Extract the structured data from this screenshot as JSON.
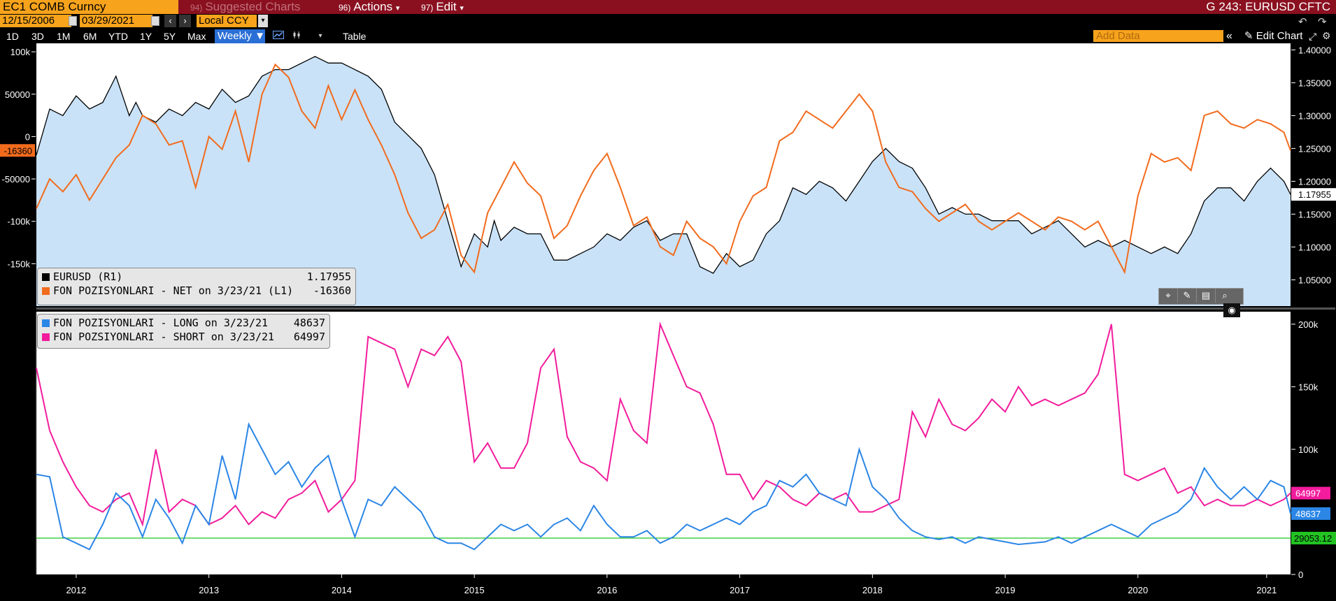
{
  "header": {
    "security": "EC1 COMB Curncy",
    "menu": [
      {
        "num": "94)",
        "label": "Suggested Charts",
        "dim": true
      },
      {
        "num": "96)",
        "label": "Actions",
        "caret": "▾"
      },
      {
        "num": "97)",
        "label": "Edit",
        "caret": "▾"
      }
    ],
    "ticker": "G 243: EURUSD CFTC"
  },
  "toolbar": {
    "start_date": "12/15/2006",
    "end_date": "03/29/2021",
    "currency": "Local CCY",
    "ranges": [
      "1D",
      "3D",
      "1M",
      "6M",
      "YTD",
      "1Y",
      "5Y",
      "Max"
    ],
    "frequency": "Weekly ▼",
    "table_label": "Table",
    "add_data_placeholder": "Add Data",
    "edit_chart_label": "Edit Chart"
  },
  "colors": {
    "eurusd": "#000000",
    "eurusd_fill": "#c9e2f8",
    "net": "#f26b1d",
    "long": "#2b86e6",
    "short": "#f21c9c",
    "hline": "#22c322",
    "plot_bg": "#ffffff"
  },
  "chart_data": [
    {
      "type": "line",
      "title": "",
      "xlabel": "",
      "x_ticks": [
        "2012",
        "2013",
        "2014",
        "2015",
        "2016",
        "2017",
        "2018",
        "2019",
        "2020",
        "2021"
      ],
      "y_left_ticks": [
        "100k",
        "50000",
        "0",
        "-50000",
        "-100k",
        "-150k"
      ],
      "y_left_range": [
        -200000,
        110000
      ],
      "y_right_ticks": [
        "1.40000",
        "1.35000",
        "1.30000",
        "1.25000",
        "1.20000",
        "1.15000",
        "1.10000",
        "1.05000"
      ],
      "y_right_range": [
        1.01,
        1.41
      ],
      "x_range": [
        2011.6,
        2021.05
      ],
      "series": [
        {
          "name": "EURUSD (R1)",
          "axis": "right",
          "last_value": "1.17955",
          "x": [
            2011.6,
            2011.7,
            2011.8,
            2011.9,
            2012.0,
            2012.1,
            2012.2,
            2012.3,
            2012.35,
            2012.4,
            2012.5,
            2012.6,
            2012.7,
            2012.8,
            2012.9,
            2013.0,
            2013.1,
            2013.2,
            2013.3,
            2013.4,
            2013.5,
            2013.6,
            2013.7,
            2013.8,
            2013.9,
            2014.0,
            2014.1,
            2014.2,
            2014.3,
            2014.4,
            2014.5,
            2014.6,
            2014.7,
            2014.8,
            2014.9,
            2015.0,
            2015.05,
            2015.1,
            2015.2,
            2015.3,
            2015.4,
            2015.5,
            2015.6,
            2015.7,
            2015.8,
            2015.9,
            2016.0,
            2016.1,
            2016.2,
            2016.3,
            2016.4,
            2016.5,
            2016.6,
            2016.7,
            2016.8,
            2016.9,
            2017.0,
            2017.1,
            2017.2,
            2017.3,
            2017.4,
            2017.5,
            2017.6,
            2017.7,
            2017.8,
            2017.9,
            2018.0,
            2018.1,
            2018.2,
            2018.3,
            2018.4,
            2018.5,
            2018.6,
            2018.7,
            2018.8,
            2018.9,
            2019.0,
            2019.1,
            2019.2,
            2019.3,
            2019.4,
            2019.5,
            2019.6,
            2019.7,
            2019.8,
            2019.9,
            2020.0,
            2020.1,
            2020.2,
            2020.3,
            2020.4,
            2020.5,
            2020.6,
            2020.7,
            2020.8,
            2020.9,
            2021.0,
            2021.05
          ],
          "y": [
            1.24,
            1.31,
            1.3,
            1.33,
            1.31,
            1.32,
            1.36,
            1.3,
            1.32,
            1.3,
            1.29,
            1.31,
            1.3,
            1.32,
            1.31,
            1.34,
            1.32,
            1.33,
            1.36,
            1.37,
            1.37,
            1.38,
            1.39,
            1.38,
            1.38,
            1.37,
            1.36,
            1.34,
            1.29,
            1.27,
            1.25,
            1.21,
            1.14,
            1.07,
            1.12,
            1.1,
            1.14,
            1.11,
            1.13,
            1.12,
            1.12,
            1.08,
            1.08,
            1.09,
            1.1,
            1.12,
            1.11,
            1.13,
            1.14,
            1.11,
            1.12,
            1.12,
            1.07,
            1.06,
            1.09,
            1.07,
            1.08,
            1.12,
            1.14,
            1.19,
            1.18,
            1.2,
            1.19,
            1.17,
            1.2,
            1.23,
            1.25,
            1.23,
            1.22,
            1.19,
            1.15,
            1.16,
            1.15,
            1.15,
            1.14,
            1.14,
            1.14,
            1.12,
            1.13,
            1.14,
            1.12,
            1.1,
            1.11,
            1.1,
            1.11,
            1.1,
            1.09,
            1.1,
            1.09,
            1.12,
            1.17,
            1.19,
            1.19,
            1.17,
            1.2,
            1.22,
            1.2,
            1.18
          ]
        },
        {
          "name": "FON POZISYONLARI - NET on 3/23/21 (L1)",
          "axis": "left",
          "last_value": "-16360",
          "x": [
            2011.6,
            2011.7,
            2011.8,
            2011.9,
            2012.0,
            2012.1,
            2012.2,
            2012.3,
            2012.4,
            2012.5,
            2012.6,
            2012.7,
            2012.8,
            2012.9,
            2013.0,
            2013.1,
            2013.2,
            2013.3,
            2013.4,
            2013.5,
            2013.6,
            2013.7,
            2013.8,
            2013.9,
            2014.0,
            2014.1,
            2014.2,
            2014.3,
            2014.4,
            2014.5,
            2014.6,
            2014.7,
            2014.8,
            2014.9,
            2015.0,
            2015.1,
            2015.2,
            2015.3,
            2015.4,
            2015.5,
            2015.6,
            2015.7,
            2015.8,
            2015.9,
            2016.0,
            2016.1,
            2016.2,
            2016.3,
            2016.4,
            2016.5,
            2016.6,
            2016.7,
            2016.8,
            2016.9,
            2017.0,
            2017.1,
            2017.2,
            2017.3,
            2017.4,
            2017.5,
            2017.6,
            2017.7,
            2017.8,
            2017.9,
            2018.0,
            2018.1,
            2018.2,
            2018.3,
            2018.4,
            2018.5,
            2018.6,
            2018.7,
            2018.8,
            2018.9,
            2019.0,
            2019.1,
            2019.2,
            2019.3,
            2019.4,
            2019.5,
            2019.6,
            2019.7,
            2019.8,
            2019.9,
            2020.0,
            2020.1,
            2020.2,
            2020.3,
            2020.4,
            2020.5,
            2020.6,
            2020.7,
            2020.8,
            2020.9,
            2021.0,
            2021.05
          ],
          "y": [
            -85000,
            -50000,
            -65000,
            -45000,
            -75000,
            -50000,
            -25000,
            -10000,
            25000,
            15000,
            -10000,
            -5000,
            -60000,
            0,
            -15000,
            30000,
            -30000,
            50000,
            85000,
            70000,
            30000,
            10000,
            60000,
            20000,
            55000,
            20000,
            -10000,
            -45000,
            -90000,
            -120000,
            -110000,
            -80000,
            -140000,
            -160000,
            -90000,
            -60000,
            -30000,
            -55000,
            -70000,
            -120000,
            -105000,
            -70000,
            -40000,
            -20000,
            -60000,
            -105000,
            -95000,
            -130000,
            -140000,
            -100000,
            -120000,
            -130000,
            -150000,
            -100000,
            -70000,
            -60000,
            -5000,
            5000,
            30000,
            20000,
            10000,
            30000,
            50000,
            30000,
            -30000,
            -60000,
            -65000,
            -85000,
            -100000,
            -90000,
            -80000,
            -100000,
            -110000,
            -100000,
            -90000,
            -100000,
            -110000,
            -95000,
            -100000,
            -110000,
            -100000,
            -130000,
            -160000,
            -70000,
            -20000,
            -30000,
            -25000,
            -40000,
            25000,
            30000,
            15000,
            10000,
            20000,
            15000,
            5000,
            -16360
          ]
        }
      ],
      "legend": "bottom-left"
    },
    {
      "type": "line",
      "title": "",
      "xlabel": "",
      "x_ticks": [
        "2012",
        "2013",
        "2014",
        "2015",
        "2016",
        "2017",
        "2018",
        "2019",
        "2020",
        "2021"
      ],
      "y_right_ticks": [
        "200k",
        "150k",
        "100k",
        "50000",
        "0"
      ],
      "y_range": [
        0,
        210000
      ],
      "x_range": [
        2011.6,
        2021.05
      ],
      "hline": {
        "value": "29053.12",
        "y": 29053.12
      },
      "series": [
        {
          "name": "FON POZISYONLARI - LONG on 3/23/21",
          "last_value": "48637",
          "x": [
            2011.6,
            2011.7,
            2011.8,
            2011.9,
            2012.0,
            2012.1,
            2012.2,
            2012.3,
            2012.4,
            2012.5,
            2012.6,
            2012.7,
            2012.8,
            2012.9,
            2013.0,
            2013.1,
            2013.2,
            2013.3,
            2013.4,
            2013.5,
            2013.6,
            2013.7,
            2013.8,
            2013.9,
            2014.0,
            2014.1,
            2014.2,
            2014.3,
            2014.4,
            2014.5,
            2014.6,
            2014.7,
            2014.8,
            2014.9,
            2015.0,
            2015.1,
            2015.2,
            2015.3,
            2015.4,
            2015.5,
            2015.6,
            2015.7,
            2015.8,
            2015.9,
            2016.0,
            2016.1,
            2016.2,
            2016.3,
            2016.4,
            2016.5,
            2016.6,
            2016.7,
            2016.8,
            2016.9,
            2017.0,
            2017.1,
            2017.2,
            2017.3,
            2017.4,
            2017.5,
            2017.6,
            2017.7,
            2017.8,
            2017.9,
            2018.0,
            2018.1,
            2018.2,
            2018.3,
            2018.4,
            2018.5,
            2018.6,
            2018.7,
            2018.8,
            2018.9,
            2019.0,
            2019.1,
            2019.2,
            2019.3,
            2019.4,
            2019.5,
            2019.6,
            2019.7,
            2019.8,
            2019.9,
            2020.0,
            2020.1,
            2020.2,
            2020.3,
            2020.4,
            2020.5,
            2020.6,
            2020.7,
            2020.8,
            2020.9,
            2021.0,
            2021.05
          ],
          "y": [
            80000,
            78000,
            30000,
            25000,
            20000,
            40000,
            65000,
            55000,
            30000,
            60000,
            45000,
            25000,
            55000,
            40000,
            95000,
            60000,
            120000,
            100000,
            80000,
            90000,
            70000,
            85000,
            95000,
            60000,
            30000,
            60000,
            55000,
            70000,
            60000,
            50000,
            30000,
            25000,
            25000,
            20000,
            30000,
            40000,
            35000,
            40000,
            30000,
            40000,
            45000,
            35000,
            55000,
            40000,
            30000,
            30000,
            35000,
            25000,
            30000,
            40000,
            35000,
            40000,
            45000,
            40000,
            50000,
            55000,
            75000,
            70000,
            80000,
            65000,
            60000,
            55000,
            100000,
            70000,
            60000,
            45000,
            35000,
            30000,
            28000,
            30000,
            25000,
            30000,
            28000,
            26000,
            24000,
            25000,
            26000,
            30000,
            25000,
            30000,
            35000,
            40000,
            35000,
            30000,
            40000,
            45000,
            50000,
            60000,
            85000,
            70000,
            60000,
            70000,
            60000,
            75000,
            70000,
            48637
          ]
        },
        {
          "name": "FON POZSIYONLARI - SHORT on 3/23/21",
          "last_value": "64997",
          "x": [
            2011.6,
            2011.7,
            2011.8,
            2011.9,
            2012.0,
            2012.1,
            2012.2,
            2012.3,
            2012.4,
            2012.5,
            2012.6,
            2012.7,
            2012.8,
            2012.9,
            2013.0,
            2013.1,
            2013.2,
            2013.3,
            2013.4,
            2013.5,
            2013.6,
            2013.7,
            2013.8,
            2013.9,
            2014.0,
            2014.1,
            2014.2,
            2014.3,
            2014.4,
            2014.5,
            2014.6,
            2014.7,
            2014.8,
            2014.9,
            2015.0,
            2015.1,
            2015.2,
            2015.3,
            2015.4,
            2015.5,
            2015.6,
            2015.7,
            2015.8,
            2015.9,
            2016.0,
            2016.1,
            2016.2,
            2016.3,
            2016.4,
            2016.5,
            2016.6,
            2016.7,
            2016.8,
            2016.9,
            2017.0,
            2017.1,
            2017.2,
            2017.3,
            2017.4,
            2017.5,
            2017.6,
            2017.7,
            2017.8,
            2017.9,
            2018.0,
            2018.1,
            2018.2,
            2018.3,
            2018.4,
            2018.5,
            2018.6,
            2018.7,
            2018.8,
            2018.9,
            2019.0,
            2019.1,
            2019.2,
            2019.3,
            2019.4,
            2019.5,
            2019.6,
            2019.7,
            2019.8,
            2019.9,
            2020.0,
            2020.1,
            2020.2,
            2020.3,
            2020.4,
            2020.5,
            2020.6,
            2020.7,
            2020.8,
            2020.9,
            2021.0,
            2021.05
          ],
          "y": [
            165000,
            115000,
            90000,
            70000,
            55000,
            50000,
            60000,
            65000,
            40000,
            100000,
            50000,
            60000,
            55000,
            40000,
            45000,
            55000,
            40000,
            50000,
            45000,
            60000,
            65000,
            75000,
            50000,
            60000,
            75000,
            190000,
            185000,
            180000,
            150000,
            180000,
            175000,
            190000,
            170000,
            90000,
            105000,
            85000,
            85000,
            105000,
            165000,
            180000,
            110000,
            90000,
            85000,
            75000,
            140000,
            115000,
            105000,
            200000,
            175000,
            150000,
            145000,
            120000,
            80000,
            80000,
            60000,
            75000,
            70000,
            60000,
            55000,
            65000,
            60000,
            65000,
            50000,
            50000,
            55000,
            60000,
            130000,
            110000,
            140000,
            120000,
            115000,
            125000,
            140000,
            130000,
            150000,
            135000,
            140000,
            135000,
            140000,
            145000,
            160000,
            200000,
            80000,
            75000,
            80000,
            85000,
            65000,
            70000,
            55000,
            60000,
            55000,
            55000,
            60000,
            55000,
            60000,
            64997
          ]
        }
      ],
      "legend": "top-left"
    }
  ]
}
